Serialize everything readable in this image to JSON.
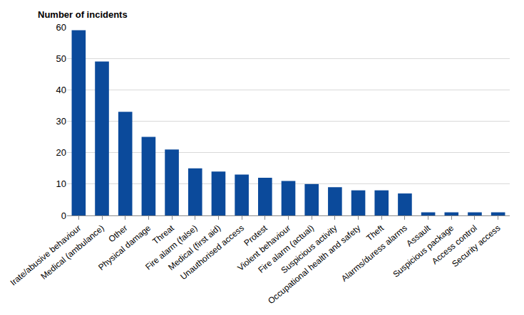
{
  "chart_data": {
    "type": "bar",
    "ylabel": "Number of incidents",
    "categories": [
      "Irate/abusive behaviour",
      "Medical (ambulance)",
      "Other",
      "Physical damage",
      "Threat",
      "Fire alarm (false)",
      "Medical (first aid)",
      "Unauthorised access",
      "Protest",
      "Violent behaviour",
      "Fire alarm (actual)",
      "Suspicious activity",
      "Occupational health and safety",
      "Theft",
      "Alarms/duress alarms",
      "Assault",
      "Suspicious package",
      "Access control",
      "Security access"
    ],
    "values": [
      59,
      49,
      33,
      25,
      21,
      15,
      14,
      13,
      12,
      11,
      10,
      9,
      8,
      8,
      7,
      1,
      1,
      1,
      1
    ],
    "color": "#0b4a9b",
    "ylim": [
      0,
      60
    ],
    "yticks": [
      0,
      10,
      20,
      30,
      40,
      50,
      60
    ],
    "grid": true
  }
}
